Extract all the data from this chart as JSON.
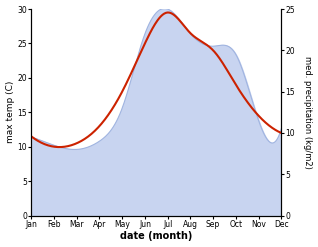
{
  "months": [
    "Jan",
    "Feb",
    "Mar",
    "Apr",
    "May",
    "Jun",
    "Jul",
    "Aug",
    "Sep",
    "Oct",
    "Nov",
    "Dec"
  ],
  "temp_max": [
    11.5,
    10.0,
    10.5,
    13.0,
    18.0,
    25.0,
    29.5,
    26.5,
    24.0,
    19.0,
    14.5,
    12.0
  ],
  "precipitation": [
    9.5,
    8.5,
    8.0,
    9.0,
    13.0,
    22.0,
    25.0,
    22.0,
    20.5,
    19.5,
    11.5,
    10.5
  ],
  "temp_color": "#cc2200",
  "precip_fill_color": "#c8d4f0",
  "precip_line_color": "#a0b4e0",
  "xlabel": "date (month)",
  "ylabel_left": "max temp (C)",
  "ylabel_right": "med. precipitation (kg/m2)",
  "ylim_left": [
    0,
    30
  ],
  "ylim_right": [
    0,
    25
  ],
  "yticks_left": [
    0,
    5,
    10,
    15,
    20,
    25,
    30
  ],
  "yticks_right": [
    0,
    5,
    10,
    15,
    20,
    25
  ],
  "bg_color": "#ffffff",
  "temp_linewidth": 1.5,
  "precip_linewidth": 0.8,
  "figsize": [
    3.18,
    2.47
  ],
  "dpi": 100
}
